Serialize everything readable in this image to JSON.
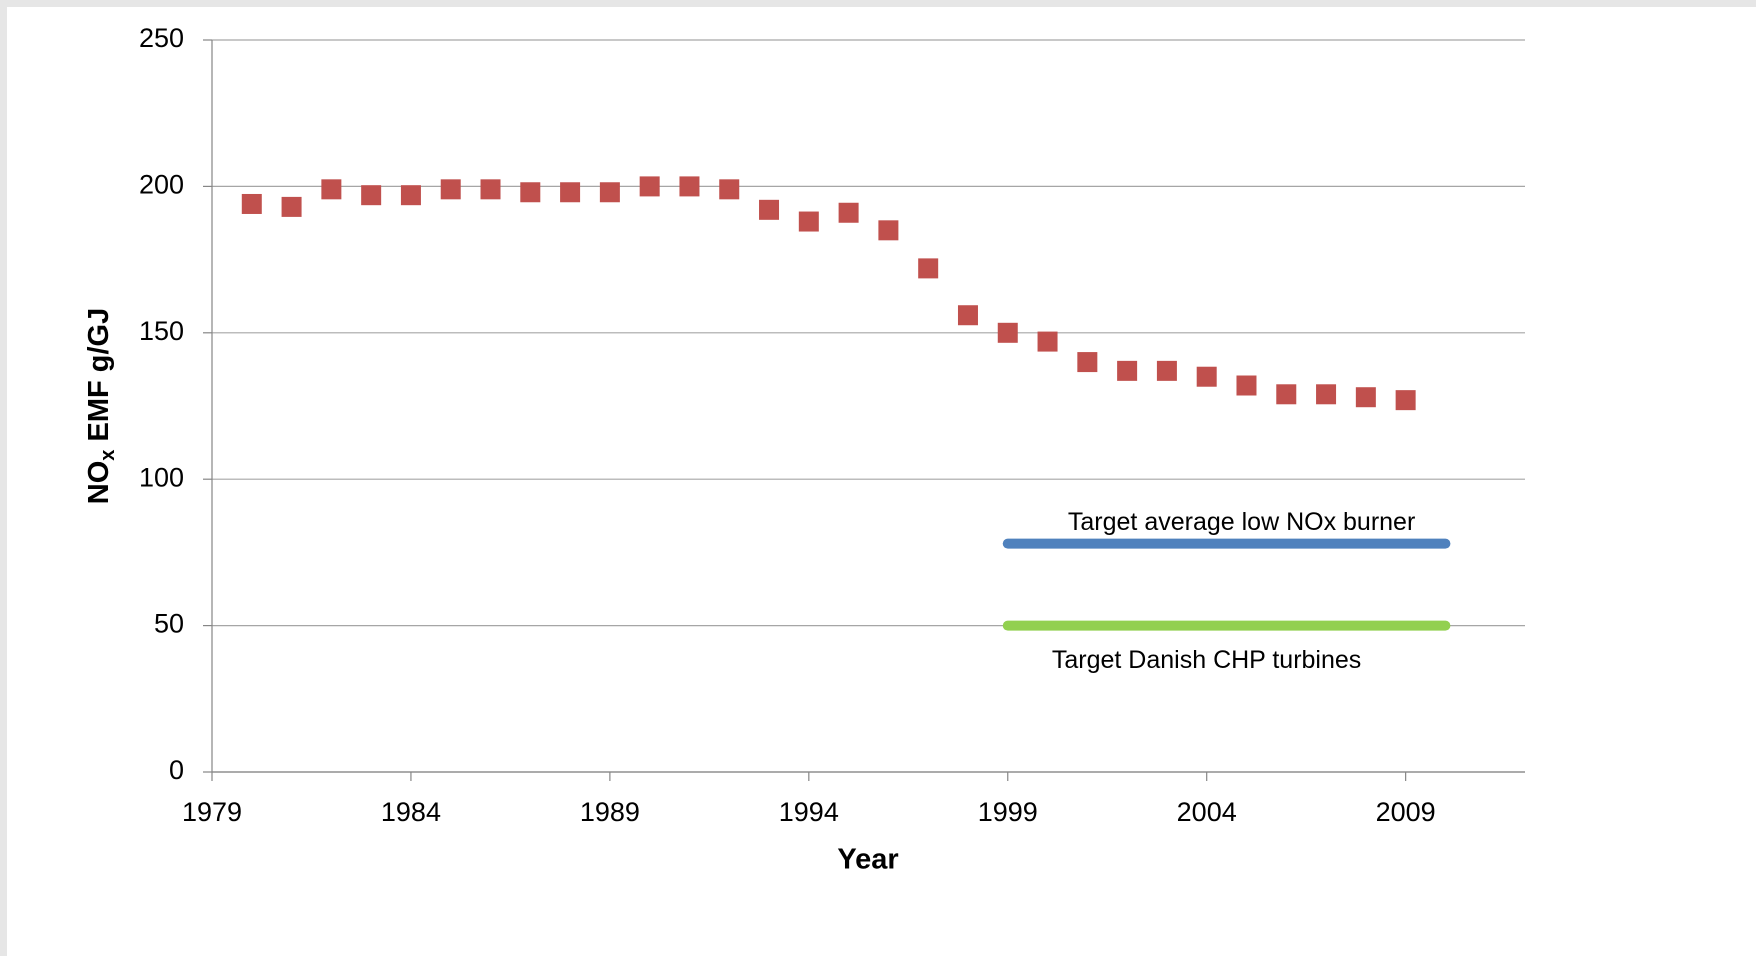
{
  "chart_data": {
    "type": "scatter",
    "xlabel": "Year",
    "ylabel_parts": [
      "NO",
      "x",
      " EMF g/GJ"
    ],
    "xlim": [
      1979,
      2012
    ],
    "xticks": [
      1979,
      1984,
      1989,
      1994,
      1999,
      2004,
      2009
    ],
    "ylim": [
      0,
      250
    ],
    "yticks": [
      0,
      50,
      100,
      150,
      200,
      250
    ],
    "grid": true,
    "series": [
      {
        "kind": "scatter",
        "color": "#c0504d",
        "x": [
          1980,
          1981,
          1982,
          1983,
          1984,
          1985,
          1986,
          1987,
          1988,
          1989,
          1990,
          1991,
          1992,
          1993,
          1994,
          1995,
          1996,
          1997,
          1998,
          1999,
          2000,
          2001,
          2002,
          2003,
          2004,
          2005,
          2006,
          2007,
          2008,
          2009
        ],
        "values": [
          194,
          193,
          199,
          197,
          197,
          199,
          199,
          198,
          198,
          198,
          200,
          200,
          199,
          192,
          188,
          191,
          185,
          172,
          156,
          150,
          147,
          140,
          137,
          137,
          135,
          132,
          129,
          129,
          128,
          127
        ]
      },
      {
        "kind": "line",
        "name": "Target average low NOx burner",
        "color": "#4f81bd",
        "x": [
          1999,
          2010
        ],
        "values": [
          78,
          78
        ]
      },
      {
        "kind": "line",
        "name": "Target Danish CHP turbines",
        "color": "#92d050",
        "x": [
          1999,
          2010
        ],
        "values": [
          50,
          50
        ]
      }
    ]
  }
}
